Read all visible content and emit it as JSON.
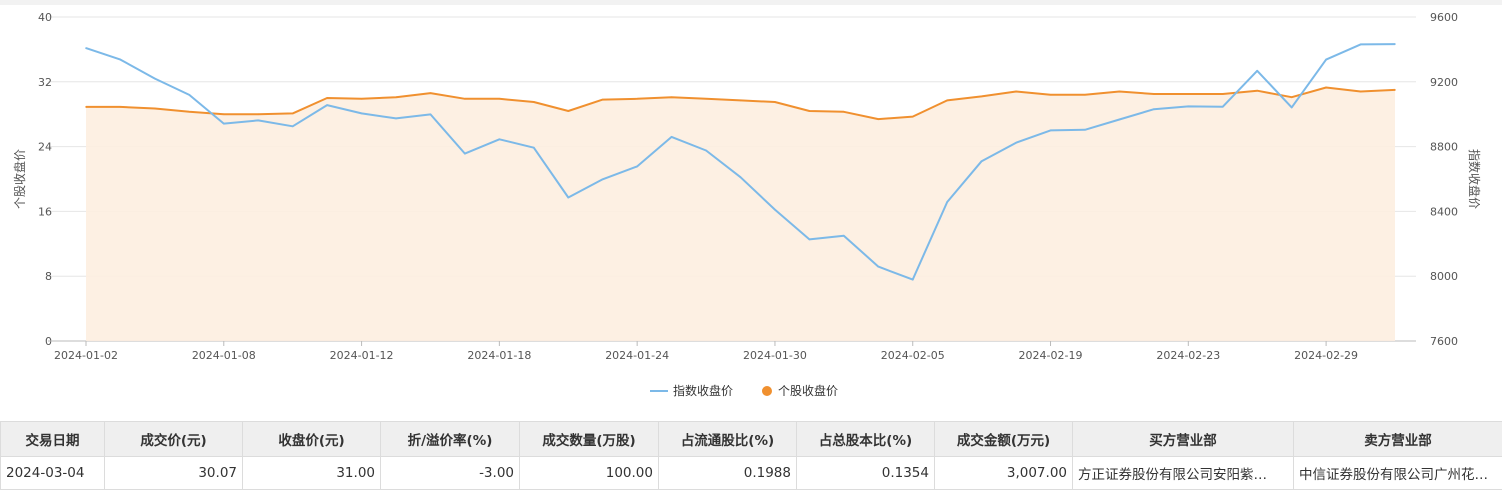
{
  "chart_data": {
    "type": "line",
    "x": [
      "2024-01-02",
      "2024-01-03",
      "2024-01-04",
      "2024-01-05",
      "2024-01-08",
      "2024-01-09",
      "2024-01-10",
      "2024-01-11",
      "2024-01-12",
      "2024-01-15",
      "2024-01-16",
      "2024-01-17",
      "2024-01-18",
      "2024-01-19",
      "2024-01-22",
      "2024-01-23",
      "2024-01-24",
      "2024-01-25",
      "2024-01-26",
      "2024-01-29",
      "2024-01-30",
      "2024-01-31",
      "2024-02-01",
      "2024-02-02",
      "2024-02-05",
      "2024-02-06",
      "2024-02-07",
      "2024-02-08",
      "2024-02-19",
      "2024-02-20",
      "2024-02-21",
      "2024-02-22",
      "2024-02-23",
      "2024-02-26",
      "2024-02-27",
      "2024-02-28",
      "2024-02-29",
      "2024-03-01",
      "2024-03-04"
    ],
    "x_tick_labels": [
      "2024-01-02",
      "2024-01-08",
      "2024-01-12",
      "2024-01-18",
      "2024-01-24",
      "2024-01-30",
      "2024-02-05",
      "2024-02-19",
      "2024-02-23",
      "2024-02-29"
    ],
    "series": [
      {
        "name": "指数收盘价",
        "axis": "right",
        "color": "#7cb9e8",
        "area": false,
        "values": [
          9408,
          9337,
          9220,
          9119,
          8942,
          8962,
          8925,
          9056,
          9005,
          8974,
          8999,
          8757,
          8845,
          8793,
          8486,
          8598,
          8678,
          8860,
          8776,
          8611,
          8411,
          8227,
          8250,
          8059,
          7979,
          8458,
          8710,
          8824,
          8900,
          8904,
          8967,
          9031,
          9048,
          9046,
          9268,
          9042,
          9337,
          9431,
          9433
        ]
      },
      {
        "name": "个股收盘价",
        "axis": "left",
        "color": "#f0902f",
        "area": true,
        "values": [
          28.9,
          28.9,
          28.7,
          28.3,
          28.0,
          28.0,
          28.1,
          30.0,
          29.9,
          30.1,
          30.6,
          29.9,
          29.9,
          29.5,
          28.4,
          29.8,
          29.9,
          30.1,
          29.9,
          29.7,
          29.5,
          28.4,
          28.3,
          27.4,
          27.7,
          29.7,
          30.2,
          30.8,
          30.4,
          30.4,
          30.8,
          30.5,
          30.5,
          30.5,
          30.9,
          30.1,
          31.3,
          30.8,
          31.0
        ]
      }
    ],
    "y_left": {
      "label": "个股收盘价",
      "ylim": [
        0,
        40
      ],
      "ticks": [
        0,
        8,
        16,
        24,
        32,
        40
      ]
    },
    "y_right": {
      "label": "指数收盘价",
      "ylim": [
        7600,
        9600
      ],
      "ticks": [
        7600,
        8000,
        8400,
        8800,
        9200,
        9600
      ]
    },
    "grid": true,
    "legend_position": "bottom-center"
  },
  "table": {
    "headers": [
      "交易日期",
      "成交价(元)",
      "收盘价(元)",
      "折/溢价率(%)",
      "成交数量(万股)",
      "占流通股比(%)",
      "占总股本比(%)",
      "成交金额(万元)",
      "买方营业部",
      "卖方营业部"
    ],
    "rows": [
      [
        "2024-03-04",
        "30.07",
        "31.00",
        "-3.00",
        "100.00",
        "0.1988",
        "0.1354",
        "3,007.00",
        "方正证券股份有限公司安阳紫…",
        "中信证券股份有限公司广州花…"
      ]
    ]
  }
}
